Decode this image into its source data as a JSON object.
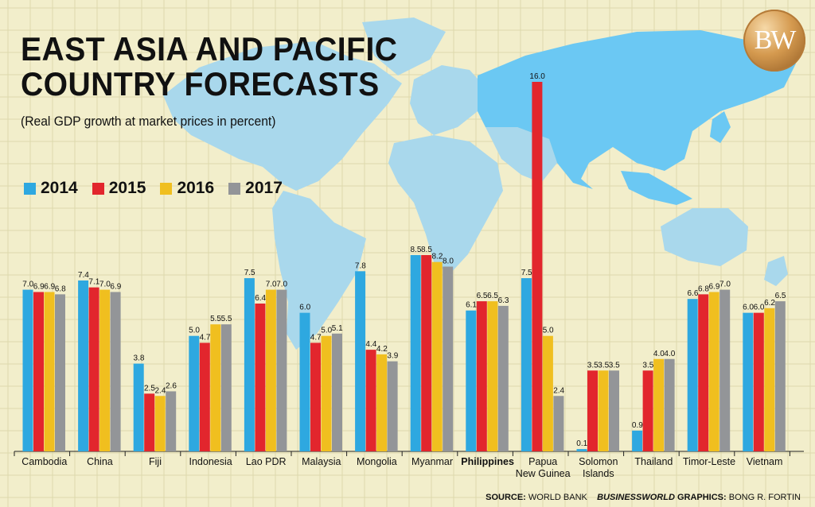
{
  "title_line1": "EAST ASIA AND PACIFIC",
  "title_line2": "COUNTRY FORECASTS",
  "subtitle": "(Real GDP growth at market prices in percent)",
  "logo_text": "BW",
  "footer": {
    "source_label": "SOURCE:",
    "source_value": "WORLD BANK",
    "publisher": "BUSINESSWORLD",
    "graphics_label": "GRAPHICS:",
    "graphics_value": "BONG R. FORTIN"
  },
  "colors": {
    "2014": "#2ea8e0",
    "2015": "#e2262d",
    "2016": "#f0bf1f",
    "2017": "#939598",
    "map": "#a9d8ec",
    "highlight": "#6bc8f3",
    "background": "#f2eecb"
  },
  "chart_data": {
    "type": "bar",
    "title": "EAST ASIA AND PACIFIC COUNTRY FORECASTS",
    "subtitle": "(Real GDP growth at market prices in percent)",
    "legend_position": "top-left",
    "ylim": [
      0,
      16
    ],
    "categories": [
      "Cambodia",
      "China",
      "Fiji",
      "Indonesia",
      "Lao PDR",
      "Malaysia",
      "Mongolia",
      "Myanmar",
      "Philippines",
      "Papua New Guinea",
      "Solomon Islands",
      "Thailand",
      "Timor-Leste",
      "Vietnam"
    ],
    "category_lines": [
      [
        "Cambodia"
      ],
      [
        "China"
      ],
      [
        "Fiji"
      ],
      [
        "Indonesia"
      ],
      [
        "Lao PDR"
      ],
      [
        "Malaysia"
      ],
      [
        "Mongolia"
      ],
      [
        "Myanmar"
      ],
      [
        "Philippines"
      ],
      [
        "Papua",
        "New Guinea"
      ],
      [
        "Solomon",
        "Islands"
      ],
      [
        "Thailand"
      ],
      [
        "Timor-Leste"
      ],
      [
        "Vietnam"
      ]
    ],
    "highlight_category": "Philippines",
    "series": [
      {
        "name": "2014",
        "color": "#2ea8e0",
        "values": [
          7.0,
          7.4,
          3.8,
          5.0,
          7.5,
          6.0,
          7.8,
          8.5,
          6.1,
          7.5,
          0.1,
          0.9,
          6.6,
          6.0
        ],
        "labels": [
          "7.0",
          "7.4",
          "3.8",
          "5.0",
          "7.5",
          "6.0",
          "7.8",
          "8.5",
          "6.1",
          "7.5",
          "0.1",
          "0.9",
          "6.6",
          "6.0"
        ]
      },
      {
        "name": "2015",
        "color": "#e2262d",
        "values": [
          6.9,
          7.1,
          2.5,
          4.7,
          6.4,
          4.7,
          4.4,
          8.5,
          6.5,
          16.0,
          3.5,
          3.5,
          6.8,
          6.0
        ],
        "labels": [
          "6.9",
          "7.1",
          "2.5",
          "4.7",
          "6.4",
          "4.7",
          "4.4",
          "8.5",
          "6.5",
          "16.0",
          "3.5",
          "3.5",
          "6.8",
          "6.0"
        ]
      },
      {
        "name": "2016",
        "color": "#f0bf1f",
        "values": [
          6.9,
          7.0,
          2.4,
          5.5,
          7.0,
          5.0,
          4.2,
          8.2,
          6.5,
          5.0,
          3.5,
          4.0,
          6.9,
          6.2
        ],
        "labels": [
          "6.9",
          "7.0",
          "2.4",
          "5.5",
          "7.0",
          "5.0",
          "4.2",
          "8.2",
          "6.5",
          "5.0",
          "3.5",
          "4.0",
          "6.9",
          "6.2"
        ]
      },
      {
        "name": "2017",
        "color": "#939598",
        "values": [
          6.8,
          6.9,
          2.6,
          5.5,
          7.0,
          5.1,
          3.9,
          8.0,
          6.3,
          2.4,
          3.5,
          4.0,
          7.0,
          6.5
        ],
        "labels": [
          "6.8",
          "6.9",
          "2.6",
          "5.5",
          "7.0",
          "5.1",
          "3.9",
          "8.0",
          "6.3",
          "2.4",
          "3.5",
          "4.0",
          "7.0",
          "6.5"
        ]
      }
    ]
  }
}
